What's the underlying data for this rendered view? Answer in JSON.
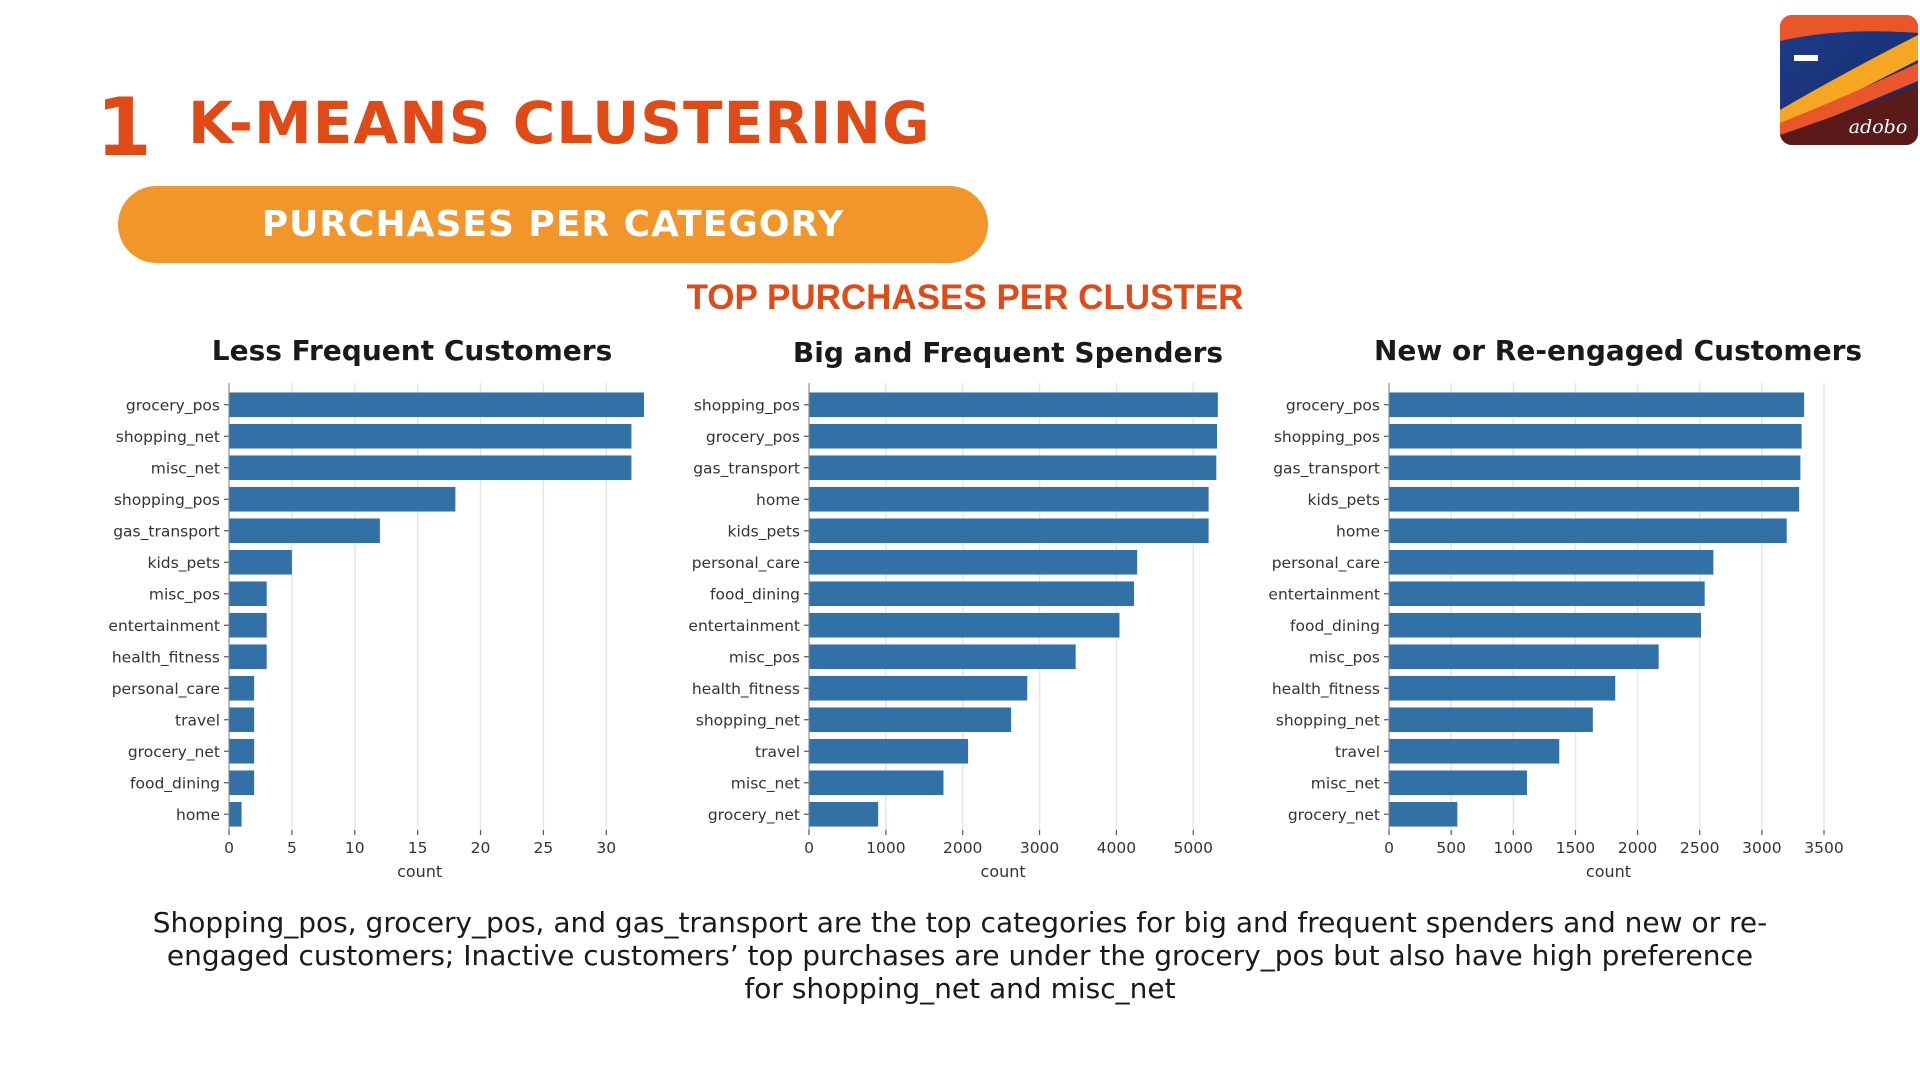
{
  "slide": {
    "number": "1",
    "title": "K-MEANS CLUSTERING",
    "section_label": "PURCHASES PER CATEGORY",
    "heading": "TOP PURCHASES PER CLUSTER",
    "caption": "Shopping_pos, grocery_pos, and gas_transport are the top categories for big and frequent spenders and new or re-engaged customers; Inactive customers’ top purchases are under the grocery_pos but also have high preference for shopping_net and misc_net",
    "logo_text": "adobo"
  },
  "colors": {
    "accent": "#e04a17",
    "pill": "#f2962b",
    "bar": "#3271a6",
    "grid": "#e6e6e6"
  },
  "chart_data": [
    {
      "type": "bar",
      "orientation": "horizontal",
      "title": "Less Frequent Customers",
      "xlabel": "count",
      "ylabel": "",
      "xlim": [
        0,
        33
      ],
      "xticks": [
        0,
        5,
        10,
        15,
        20,
        25,
        30
      ],
      "grid": true,
      "categories": [
        "grocery_pos",
        "shopping_net",
        "misc_net",
        "shopping_pos",
        "gas_transport",
        "kids_pets",
        "misc_pos",
        "entertainment",
        "health_fitness",
        "personal_care",
        "travel",
        "grocery_net",
        "food_dining",
        "home"
      ],
      "values": [
        33,
        32,
        32,
        18,
        12,
        5,
        3,
        3,
        3,
        2,
        2,
        2,
        2,
        1
      ]
    },
    {
      "type": "bar",
      "orientation": "horizontal",
      "title": "Big and Frequent Spenders",
      "xlabel": "count",
      "ylabel": "",
      "xlim": [
        0,
        5400
      ],
      "xticks": [
        0,
        1000,
        2000,
        3000,
        4000,
        5000
      ],
      "grid": true,
      "categories": [
        "shopping_pos",
        "grocery_pos",
        "gas_transport",
        "home",
        "kids_pets",
        "personal_care",
        "food_dining",
        "entertainment",
        "misc_pos",
        "health_fitness",
        "shopping_net",
        "travel",
        "misc_net",
        "grocery_net"
      ],
      "values": [
        5320,
        5310,
        5300,
        5200,
        5200,
        4270,
        4230,
        4040,
        3470,
        2840,
        2630,
        2070,
        1750,
        900
      ]
    },
    {
      "type": "bar",
      "orientation": "horizontal",
      "title": "New or Re-engaged Customers",
      "xlabel": "count",
      "ylabel": "",
      "xlim": [
        0,
        3500
      ],
      "xticks": [
        0,
        500,
        1000,
        1500,
        2000,
        2500,
        3000,
        3500
      ],
      "grid": true,
      "categories": [
        "grocery_pos",
        "shopping_pos",
        "gas_transport",
        "kids_pets",
        "home",
        "personal_care",
        "entertainment",
        "food_dining",
        "misc_pos",
        "health_fitness",
        "shopping_net",
        "travel",
        "misc_net",
        "grocery_net"
      ],
      "values": [
        3340,
        3320,
        3310,
        3300,
        3200,
        2610,
        2540,
        2510,
        2170,
        1820,
        1640,
        1370,
        1110,
        550
      ]
    }
  ]
}
